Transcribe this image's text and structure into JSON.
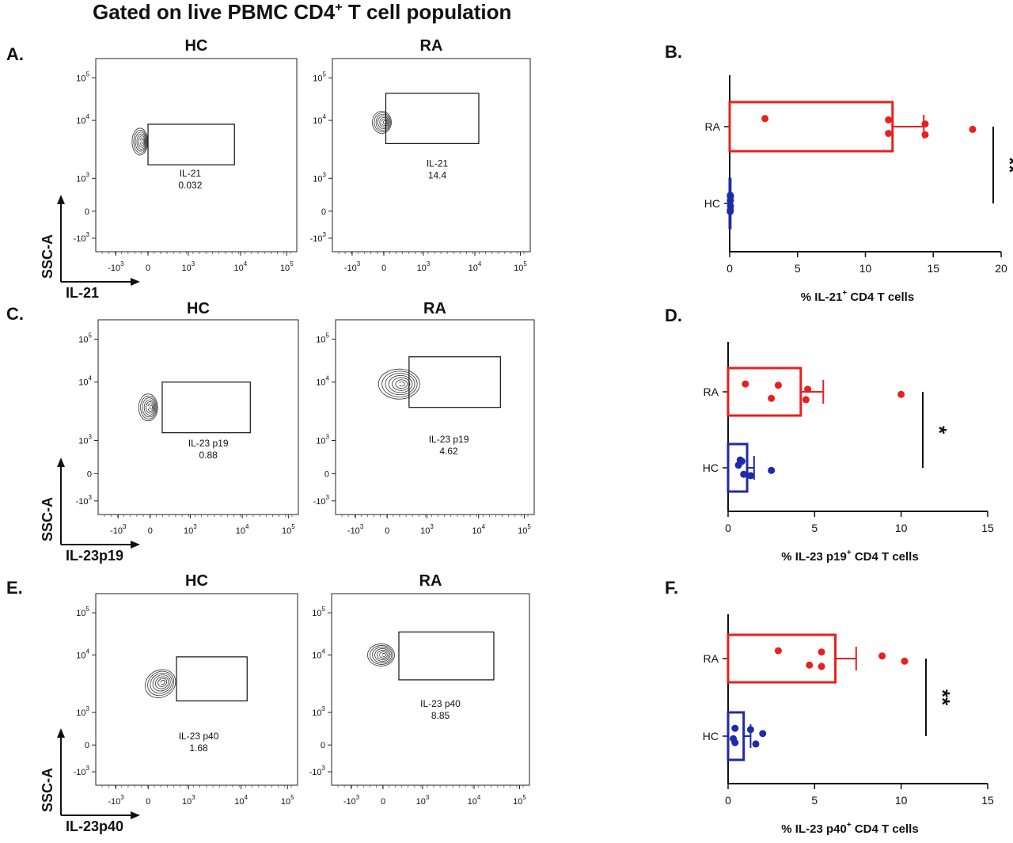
{
  "figure_title": {
    "text": "Gated on live PBMC CD4",
    "superscript": "+",
    "tail": " T cell population"
  },
  "flow_axis_ticks": {
    "x": [
      "-10^3",
      "0",
      "10^3",
      "10^4",
      "10^5"
    ],
    "y": [
      "10^5",
      "10^4",
      "10^3",
      "0",
      "-10^3"
    ]
  },
  "flow_panels": [
    {
      "letter": "A.",
      "y_axis": "SSC-A",
      "x_axis": "IL-21",
      "plots": [
        {
          "group": "HC",
          "gate_label": "IL-21",
          "gate_value": "0.032"
        },
        {
          "group": "RA",
          "gate_label": "IL-21",
          "gate_value": "14.4"
        }
      ]
    },
    {
      "letter": "C.",
      "y_axis": "SSC-A",
      "x_axis": "IL-23p19",
      "plots": [
        {
          "group": "HC",
          "gate_label": "IL-23 p19",
          "gate_value": "0.88"
        },
        {
          "group": "RA",
          "gate_label": "IL-23 p19",
          "gate_value": "4.62"
        }
      ]
    },
    {
      "letter": "E.",
      "y_axis": "SSC-A",
      "x_axis": "IL-23p40",
      "plots": [
        {
          "group": "HC",
          "gate_label": "IL-23 p40",
          "gate_value": "1.68"
        },
        {
          "group": "RA",
          "gate_label": "IL-23 p40",
          "gate_value": "8.85"
        }
      ]
    }
  ],
  "chart_data": [
    {
      "letter": "B.",
      "type": "bar",
      "orientation": "horizontal",
      "categories": [
        "RA",
        "HC"
      ],
      "xlim": [
        0,
        20
      ],
      "xticks": [
        0,
        5,
        10,
        15,
        20
      ],
      "xlabel": "% IL-21",
      "xlabel_sup": "+",
      "xlabel_tail": " CD4 T cells",
      "significance": "**",
      "colors": {
        "RA": "#e8201e",
        "HC": "#1f2aa8"
      },
      "series": [
        {
          "name": "RA",
          "mean": 12.0,
          "error": 2.3,
          "points": [
            2.6,
            11.7,
            11.7,
            14.4,
            14.4,
            17.9
          ]
        },
        {
          "name": "HC",
          "mean": 0.05,
          "error": 0.02,
          "points": [
            0.05,
            0.05,
            0.06,
            0.04,
            0.05,
            0.06
          ]
        }
      ]
    },
    {
      "letter": "D.",
      "type": "bar",
      "orientation": "horizontal",
      "categories": [
        "RA",
        "HC"
      ],
      "xlim": [
        0,
        15
      ],
      "xticks": [
        0,
        5,
        10,
        15
      ],
      "xlabel": "% IL-23 p19",
      "xlabel_sup": "+",
      "xlabel_tail": " CD4 T cells",
      "significance": "*",
      "colors": {
        "RA": "#e8201e",
        "HC": "#1f2aa8"
      },
      "series": [
        {
          "name": "RA",
          "mean": 4.2,
          "error": 1.3,
          "points": [
            1.0,
            2.5,
            2.9,
            4.5,
            4.6,
            10.0
          ]
        },
        {
          "name": "HC",
          "mean": 1.1,
          "error": 0.4,
          "points": [
            0.7,
            0.9,
            0.8,
            1.3,
            0.6,
            2.5
          ]
        }
      ]
    },
    {
      "letter": "F.",
      "type": "bar",
      "orientation": "horizontal",
      "categories": [
        "RA",
        "HC"
      ],
      "xlim": [
        0,
        15
      ],
      "xticks": [
        0,
        5,
        10,
        15
      ],
      "xlabel": "% IL-23 p40",
      "xlabel_sup": "+",
      "xlabel_tail": " CD4 T cells",
      "significance": "**",
      "colors": {
        "RA": "#e8201e",
        "HC": "#1f2aa8"
      },
      "series": [
        {
          "name": "RA",
          "mean": 6.2,
          "error": 1.2,
          "points": [
            2.9,
            4.7,
            5.4,
            5.4,
            8.9,
            10.2
          ]
        },
        {
          "name": "HC",
          "mean": 0.9,
          "error": 0.4,
          "points": [
            0.4,
            0.4,
            1.3,
            1.6,
            2.0,
            0.3
          ]
        }
      ]
    }
  ]
}
